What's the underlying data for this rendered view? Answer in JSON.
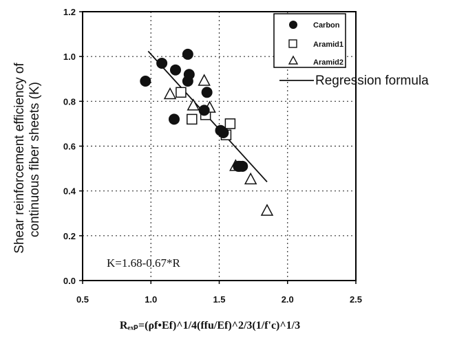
{
  "chart_data": {
    "type": "scatter",
    "title": "",
    "ylabel_line1": "Shear reinforcement efficiency of",
    "ylabel_line2": "continuous fiber sheets (K)",
    "xlabel": "Rₑₓₚ=(ρf•Ef)^1/4(ffu/Ef)^2/3(1/f'c)^1/3",
    "xlim": [
      0.5,
      2.5
    ],
    "ylim": [
      0.0,
      1.2
    ],
    "xticks": [
      "0.5",
      "1.0",
      "1.5",
      "2.0",
      "2.5"
    ],
    "yticks": [
      "0.0",
      "0.2",
      "0.4",
      "0.6",
      "0.8",
      "1.0",
      "1.2"
    ],
    "grid": true,
    "legend_position": "top-right",
    "series": [
      {
        "name": "Carbon",
        "marker": "filled-circle",
        "points": [
          [
            0.96,
            0.89
          ],
          [
            1.08,
            0.97
          ],
          [
            1.18,
            0.94
          ],
          [
            1.27,
            1.01
          ],
          [
            1.28,
            0.92
          ],
          [
            1.27,
            0.89
          ],
          [
            1.17,
            0.72
          ],
          [
            1.39,
            0.76
          ],
          [
            1.41,
            0.84
          ],
          [
            1.51,
            0.67
          ],
          [
            1.53,
            0.66
          ],
          [
            1.65,
            0.51
          ],
          [
            1.67,
            0.51
          ],
          [
            1.64,
            0.51
          ]
        ]
      },
      {
        "name": "Aramid1",
        "marker": "open-square",
        "points": [
          [
            1.22,
            0.84
          ],
          [
            1.3,
            0.72
          ],
          [
            1.4,
            0.74
          ],
          [
            1.55,
            0.65
          ],
          [
            1.58,
            0.7
          ]
        ]
      },
      {
        "name": "Aramid2",
        "marker": "open-triangle",
        "points": [
          [
            1.14,
            0.83
          ],
          [
            1.31,
            0.78
          ],
          [
            1.39,
            0.89
          ],
          [
            1.43,
            0.77
          ],
          [
            1.62,
            0.51
          ],
          [
            1.73,
            0.45
          ],
          [
            1.85,
            0.31
          ]
        ]
      }
    ],
    "regression": {
      "name": "Regression formula",
      "x": [
        0.98,
        1.85
      ],
      "formula_text": "K=1.68-0.67*R"
    }
  }
}
